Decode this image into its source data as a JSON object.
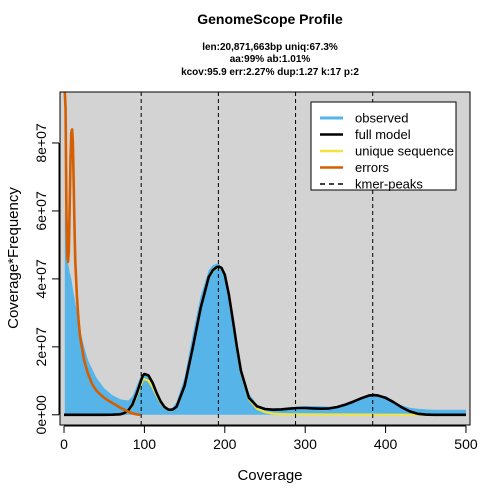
{
  "chart_data": {
    "type": "area",
    "title": "GenomeScope Profile",
    "subtitle_lines": [
      "len:20,871,663bp uniq:67.3%",
      "aa:99% ab:1.01%",
      "kcov:95.9 err:2.27%  dup:1.27  k:17 p:2"
    ],
    "xlabel": "Coverage",
    "ylabel": "Coverage*Frequency",
    "xlim": [
      -5,
      505
    ],
    "ylim": [
      -3000000,
      95000000
    ],
    "xticks": [
      0,
      100,
      200,
      300,
      400,
      500
    ],
    "xtick_labels": [
      "0",
      "100",
      "200",
      "300",
      "400",
      "500"
    ],
    "yticks": [
      0,
      20000000,
      40000000,
      60000000,
      80000000
    ],
    "ytick_labels": [
      "0e+00",
      "2e+07",
      "4e+07",
      "6e+07",
      "8e+07"
    ],
    "plot_background": "#d3d3d3",
    "grid": false,
    "legend_position": "top-right",
    "kmer_peaks": [
      96,
      192,
      288,
      384
    ],
    "series": [
      {
        "name": "observed",
        "color": "#56b4e9",
        "style": "area",
        "x": [
          1,
          3,
          5,
          7,
          9,
          11,
          14,
          17,
          20,
          25,
          30,
          40,
          50,
          60,
          70,
          80,
          85,
          90,
          95,
          100,
          105,
          110,
          115,
          120,
          125,
          130,
          135,
          140,
          150,
          160,
          170,
          180,
          185,
          190,
          193,
          196,
          200,
          205,
          210,
          220,
          230,
          240,
          250,
          260,
          270,
          280,
          290,
          300,
          310,
          320,
          330,
          340,
          350,
          360,
          370,
          380,
          385,
          390,
          400,
          410,
          420,
          430,
          440,
          450,
          460,
          470,
          480,
          490,
          500
        ],
        "y": [
          60000000,
          52000000,
          45000000,
          42000000,
          40000000,
          37000000,
          33000000,
          29000000,
          25000000,
          20000000,
          16000000,
          11000000,
          7800000,
          5800000,
          4600000,
          4200000,
          5400000,
          8200000,
          11200000,
          12300000,
          11400000,
          8800000,
          5800000,
          3500000,
          2200000,
          1700000,
          2100000,
          3800000,
          11000000,
          23500000,
          35000000,
          42500000,
          44000000,
          44500000,
          44300000,
          43200000,
          40500000,
          34500000,
          26800000,
          14200000,
          6300000,
          3000000,
          2000000,
          1900000,
          2000000,
          2200000,
          2400000,
          2600000,
          2600000,
          2500000,
          2400000,
          2500000,
          2900000,
          3600000,
          4600000,
          5400000,
          5600000,
          5500000,
          4800000,
          3700000,
          2800000,
          2100000,
          1800000,
          1600000,
          1500000,
          1500000,
          1500000,
          1500000,
          1500000
        ]
      },
      {
        "name": "full model",
        "color": "#000000",
        "style": "line",
        "x": [
          0,
          30,
          50,
          60,
          70,
          75,
          80,
          85,
          90,
          95,
          98,
          100,
          105,
          110,
          115,
          120,
          125,
          130,
          135,
          140,
          150,
          160,
          170,
          180,
          185,
          190,
          193,
          196,
          200,
          205,
          210,
          215,
          220,
          230,
          240,
          250,
          260,
          270,
          280,
          290,
          300,
          310,
          320,
          330,
          340,
          350,
          360,
          370,
          380,
          385,
          390,
          400,
          410,
          420,
          430,
          440,
          450,
          460,
          470,
          480,
          490,
          500
        ],
        "y": [
          0,
          0,
          0,
          20000,
          150000,
          500000,
          1300000,
          3000000,
          6000000,
          9500000,
          11500000,
          12000000,
          11600000,
          9500000,
          6500000,
          4000000,
          2300000,
          1500000,
          1500000,
          2400000,
          8500000,
          19500000,
          31500000,
          40500000,
          42500000,
          43500000,
          43600000,
          43200000,
          41200000,
          35500000,
          28000000,
          20000000,
          13000000,
          5000000,
          2500000,
          1700000,
          1500000,
          1600000,
          1800000,
          2000000,
          2000000,
          1900000,
          1800000,
          1900000,
          2300000,
          3000000,
          3900000,
          4900000,
          5700000,
          5800000,
          5700000,
          5000000,
          3700000,
          2200000,
          1000000,
          300000,
          70000,
          10000,
          0,
          0,
          0,
          0
        ]
      },
      {
        "name": "unique sequence",
        "color": "#f0e442",
        "style": "line",
        "x": [
          0,
          60,
          70,
          75,
          80,
          85,
          90,
          95,
          98,
          100,
          105,
          110,
          115,
          120,
          125,
          130,
          135,
          140,
          150,
          160,
          170,
          180,
          185,
          190,
          193,
          196,
          200,
          205,
          210,
          215,
          220,
          230,
          240,
          250,
          260,
          270,
          280,
          300,
          320,
          350,
          380,
          400,
          420,
          440,
          460,
          500
        ],
        "y": [
          0,
          0,
          100000,
          400000,
          1100000,
          2700000,
          5400000,
          8600000,
          10200000,
          10500000,
          10000000,
          8200000,
          5800000,
          3600000,
          2100000,
          1400000,
          1400000,
          2300000,
          8400000,
          19300000,
          31300000,
          40300000,
          42300000,
          43300000,
          43500000,
          43100000,
          41000000,
          35200000,
          27600000,
          19600000,
          12600000,
          4600000,
          1800000,
          800000,
          350000,
          200000,
          150000,
          120000,
          100000,
          80000,
          60000,
          40000,
          20000,
          10000,
          0,
          0
        ]
      },
      {
        "name": "errors",
        "color": "#d55e00",
        "style": "line",
        "x": [
          1,
          2,
          3,
          4,
          5,
          6,
          7,
          8,
          9,
          10,
          11,
          12,
          13,
          14,
          16,
          18,
          20,
          25,
          30,
          35,
          40,
          45,
          50,
          55,
          60,
          65,
          70,
          75,
          80,
          85,
          90,
          95
        ],
        "y": [
          95000000,
          90000000,
          60000000,
          47000000,
          45000000,
          48000000,
          60000000,
          75000000,
          83000000,
          84000000,
          80000000,
          68000000,
          55000000,
          45000000,
          35000000,
          28000000,
          23000000,
          16000000,
          12000000,
          9000000,
          7200000,
          6000000,
          5000000,
          4200000,
          3500000,
          2800000,
          2100000,
          1500000,
          900000,
          400000,
          150000,
          0
        ]
      },
      {
        "name": "kmer-peaks",
        "color": "#000000",
        "style": "dashed"
      }
    ]
  }
}
